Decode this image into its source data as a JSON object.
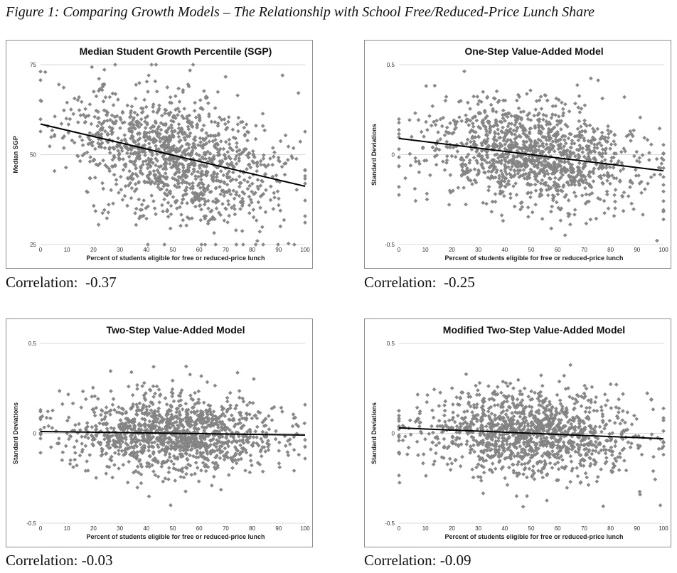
{
  "figure_title": "Figure 1: Comparing Growth Models – The Relationship with School Free/Reduced-Price Lunch Share",
  "colors": {
    "marker": "#8a8a8a",
    "marker_edge": "#6f6f6f",
    "trendline": "#000000",
    "gridline": "#d9d9d9",
    "border": "#8c8c8c"
  },
  "correlations": [
    {
      "label": "Correlation:",
      "value": "-0.37"
    },
    {
      "label": "Correlation:",
      "value": "-0.25"
    },
    {
      "label": "Correlation:",
      "value": "-0.03"
    },
    {
      "label": "Correlation:",
      "value": "-0.09"
    }
  ],
  "chart_data": [
    {
      "type": "scatter",
      "title": "Median Student Growth Percentile (SGP)",
      "xlabel": "Percent of students eligible for free or reduced-price lunch",
      "ylabel": "Median SGP",
      "xlim": [
        0,
        100
      ],
      "ylim": [
        25,
        75
      ],
      "xticks": [
        0,
        10,
        20,
        30,
        40,
        50,
        60,
        70,
        80,
        90,
        100
      ],
      "yticks": [
        25,
        50,
        75
      ],
      "ytick_labels": [
        "25",
        "50",
        "75"
      ],
      "gridlines": "horizontal",
      "trendline": {
        "x": [
          0,
          100
        ],
        "y": [
          58.5,
          41.2
        ]
      },
      "marker": "diamond",
      "n_points": 1300,
      "correlation": -0.37,
      "cloud": {
        "x_mean": 50,
        "x_sd": 20,
        "y_sd": 8.5,
        "y_min": 25,
        "y_max": 75,
        "seed": 11
      }
    },
    {
      "type": "scatter",
      "title": "One-Step Value-Added Model",
      "xlabel": "Percent of students eligible for free or reduced-price lunch",
      "ylabel": "Standard Deviations",
      "xlim": [
        0,
        100
      ],
      "ylim": [
        -0.5,
        0.5
      ],
      "xticks": [
        0,
        10,
        20,
        30,
        40,
        50,
        60,
        70,
        80,
        90,
        100
      ],
      "yticks": [
        -0.5,
        0,
        0.5
      ],
      "ytick_labels": [
        "-0.5",
        "0",
        "0.5"
      ],
      "gridlines": "horizontal",
      "trendline": {
        "x": [
          0,
          100
        ],
        "y": [
          0.09,
          -0.09
        ]
      },
      "marker": "diamond",
      "n_points": 1300,
      "correlation": -0.25,
      "cloud": {
        "x_mean": 50,
        "x_sd": 20,
        "y_sd": 0.14,
        "y_min": -0.5,
        "y_max": 0.5,
        "seed": 23
      }
    },
    {
      "type": "scatter",
      "title": "Two-Step Value-Added Model",
      "xlabel": "Percent of students eligible for free or reduced-price lunch",
      "ylabel": "Standard Deviations",
      "xlim": [
        0,
        100
      ],
      "ylim": [
        -0.5,
        0.5
      ],
      "xticks": [
        0,
        10,
        20,
        30,
        40,
        50,
        60,
        70,
        80,
        90,
        100
      ],
      "yticks": [
        -0.5,
        0,
        0.5
      ],
      "ytick_labels": [
        "-0.5",
        "0",
        "0.5"
      ],
      "gridlines": "horizontal",
      "trendline": {
        "x": [
          0,
          100
        ],
        "y": [
          0.01,
          -0.01
        ]
      },
      "marker": "diamond",
      "n_points": 1300,
      "correlation": -0.03,
      "cloud": {
        "x_mean": 50,
        "x_sd": 20,
        "y_sd": 0.11,
        "y_min": -0.5,
        "y_max": 0.5,
        "seed": 37
      }
    },
    {
      "type": "scatter",
      "title": "Modified Two-Step Value-Added Model",
      "xlabel": "Percent of students eligible for free or reduced-price lunch",
      "ylabel": "Standard Deviations",
      "xlim": [
        0,
        100
      ],
      "ylim": [
        -0.5,
        0.5
      ],
      "xticks": [
        0,
        10,
        20,
        30,
        40,
        50,
        60,
        70,
        80,
        90,
        100
      ],
      "yticks": [
        -0.5,
        0,
        0.5
      ],
      "ytick_labels": [
        "-0.5",
        "0",
        "0.5"
      ],
      "gridlines": "horizontal",
      "trendline": {
        "x": [
          0,
          100
        ],
        "y": [
          0.03,
          -0.03
        ]
      },
      "marker": "diamond",
      "n_points": 1300,
      "correlation": -0.09,
      "cloud": {
        "x_mean": 50,
        "x_sd": 20,
        "y_sd": 0.12,
        "y_min": -0.5,
        "y_max": 0.5,
        "seed": 53
      }
    }
  ]
}
